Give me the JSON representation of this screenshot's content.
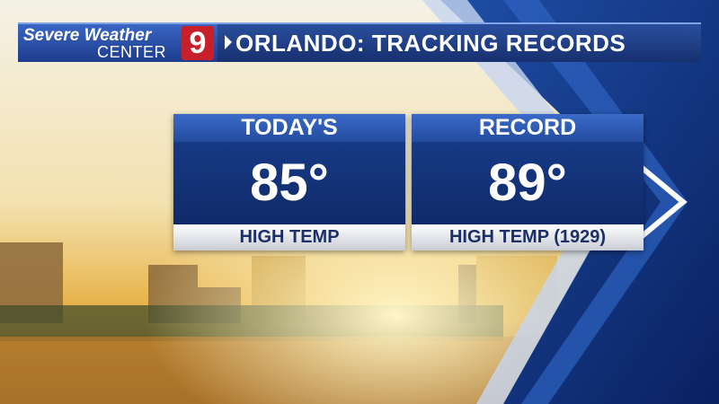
{
  "header": {
    "brand_line1": "Severe Weather",
    "brand_line2": "CENTER",
    "channel": "9",
    "title": "ORLANDO: TRACKING RECORDS"
  },
  "cards": [
    {
      "label": "TODAY'S",
      "value": "85°",
      "caption": "HIGH TEMP"
    },
    {
      "label": "RECORD",
      "value": "89°",
      "caption": "HIGH TEMP (1929)"
    }
  ]
}
